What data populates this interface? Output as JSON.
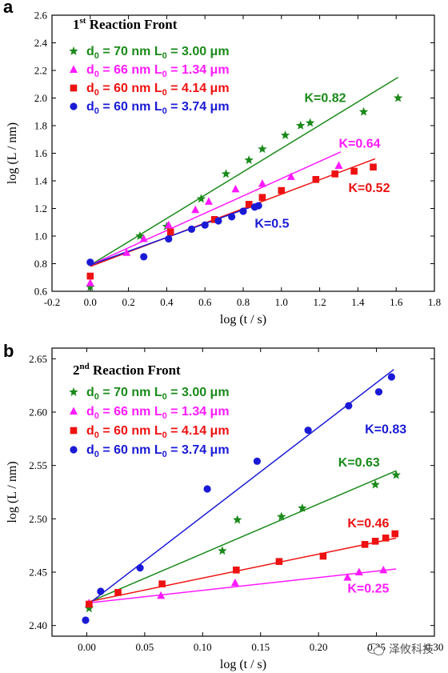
{
  "chart_data": [
    {
      "panel": "a",
      "type": "scatter",
      "title": "1st Reaction Front",
      "title_main": "1",
      "title_sup": "st",
      "title_rest": " Reaction Front",
      "xlabel": "log (t / s)",
      "ylabel": "log (L / nm)",
      "xlim": [
        -0.2,
        1.8
      ],
      "ylim": [
        0.6,
        2.6
      ],
      "xticks": [
        -0.2,
        0.0,
        0.2,
        0.4,
        0.6,
        0.8,
        1.0,
        1.2,
        1.4,
        1.6,
        1.8
      ],
      "yticks": [
        0.6,
        0.8,
        1.0,
        1.2,
        1.4,
        1.6,
        1.8,
        2.0,
        2.2,
        2.4,
        2.6
      ],
      "xtick_labels": [
        "-0.2",
        "0.0",
        "0.2",
        "0.4",
        "0.6",
        "0.8",
        "1.0",
        "1.2",
        "1.4",
        "1.6",
        "1.8"
      ],
      "ytick_labels": [
        "0.6",
        "0.8",
        "1.0",
        "1.2",
        "1.4",
        "1.6",
        "1.8",
        "2.0",
        "2.2",
        "2.4",
        "2.6"
      ],
      "legend_position": "top-left",
      "series": [
        {
          "name": "d0 = 70 nm  L0 = 3.00 μm",
          "legend_d": "d",
          "legend_sub1": "0",
          "legend_mid": " = 70 nm  L",
          "legend_sub2": "0",
          "legend_end": " = 3.00 μm",
          "marker": "star",
          "color": "#1a8a1a",
          "points": [
            [
              0.0,
              0.63
            ],
            [
              0.26,
              1.0
            ],
            [
              0.4,
              1.07
            ],
            [
              0.58,
              1.27
            ],
            [
              0.71,
              1.45
            ],
            [
              0.83,
              1.55
            ],
            [
              0.9,
              1.63
            ],
            [
              1.02,
              1.73
            ],
            [
              1.1,
              1.8
            ],
            [
              1.15,
              1.82
            ],
            [
              1.43,
              1.9
            ],
            [
              1.61,
              2.0
            ]
          ],
          "fit": {
            "x": [
              0.0,
              1.61
            ],
            "y": [
              0.79,
              2.15
            ]
          },
          "k_label": "K=0.82",
          "k_at": [
            1.12,
            1.97
          ]
        },
        {
          "name": "d0 = 66 nm  L0 = 1.34 μm",
          "legend_d": "d",
          "legend_sub1": "0",
          "legend_mid": " = 66 nm  L",
          "legend_sub2": "0",
          "legend_end": " = 1.34 μm",
          "marker": "triangle",
          "color": "#ff1aff",
          "points": [
            [
              0.0,
              0.66
            ],
            [
              0.19,
              0.88
            ],
            [
              0.28,
              0.98
            ],
            [
              0.41,
              1.08
            ],
            [
              0.55,
              1.19
            ],
            [
              0.62,
              1.25
            ],
            [
              0.76,
              1.34
            ],
            [
              0.9,
              1.38
            ],
            [
              1.05,
              1.43
            ],
            [
              1.3,
              1.51
            ]
          ],
          "fit": {
            "x": [
              0.0,
              1.31
            ],
            "y": [
              0.79,
              1.61
            ]
          },
          "k_label": "K=0.64",
          "k_at": [
            1.3,
            1.64
          ]
        },
        {
          "name": "d0 = 60 nm  L0 = 4.14 μm",
          "legend_d": "d",
          "legend_sub1": "0",
          "legend_mid": " = 60 nm  L",
          "legend_sub2": "0",
          "legend_end": " = 4.14 μm",
          "marker": "square",
          "color": "#ee1111",
          "points": [
            [
              0.0,
              0.71
            ],
            [
              0.42,
              1.03
            ],
            [
              0.65,
              1.12
            ],
            [
              0.83,
              1.23
            ],
            [
              0.9,
              1.28
            ],
            [
              1.0,
              1.33
            ],
            [
              1.18,
              1.41
            ],
            [
              1.28,
              1.45
            ],
            [
              1.38,
              1.47
            ],
            [
              1.48,
              1.5
            ]
          ],
          "fit": {
            "x": [
              0.0,
              1.49
            ],
            "y": [
              0.78,
              1.56
            ]
          },
          "k_label": "K=0.52",
          "k_at": [
            1.35,
            1.32
          ]
        },
        {
          "name": "d0 = 60 nm  L0 = 3.74 μm",
          "legend_d": "d",
          "legend_sub1": "0",
          "legend_mid": " = 60 nm  L",
          "legend_sub2": "0",
          "legend_end": " = 3.74 μm",
          "marker": "circle",
          "color": "#1a1ad6",
          "points": [
            [
              0.0,
              0.81
            ],
            [
              0.28,
              0.85
            ],
            [
              0.41,
              0.98
            ],
            [
              0.53,
              1.05
            ],
            [
              0.6,
              1.08
            ],
            [
              0.67,
              1.11
            ],
            [
              0.74,
              1.14
            ],
            [
              0.8,
              1.18
            ],
            [
              0.86,
              1.21
            ],
            [
              0.88,
              1.22
            ]
          ],
          "fit": {
            "x": [
              0.0,
              0.88
            ],
            "y": [
              0.79,
              1.23
            ]
          },
          "k_label": "K=0.5",
          "k_at": [
            0.86,
            1.06
          ]
        }
      ]
    },
    {
      "panel": "b",
      "type": "scatter",
      "title": "2nd Reaction Front",
      "title_main": "2",
      "title_sup": "nd",
      "title_rest": " Reaction Front",
      "xlabel": "log (t / s)",
      "ylabel": "log (L / nm)",
      "xlim": [
        -0.03,
        0.3
      ],
      "ylim": [
        2.39,
        2.66
      ],
      "xticks": [
        0.0,
        0.05,
        0.1,
        0.15,
        0.2,
        0.25,
        0.3
      ],
      "yticks": [
        2.4,
        2.45,
        2.5,
        2.55,
        2.6,
        2.65
      ],
      "xtick_labels": [
        "0.00",
        "0.05",
        "0.10",
        "0.15",
        "0.20",
        "0.25",
        "0.30"
      ],
      "ytick_labels": [
        "2.40",
        "2.45",
        "2.50",
        "2.55",
        "2.60",
        "2.65"
      ],
      "legend_position": "top-left",
      "series": [
        {
          "name": "d0 = 70 nm  L0 = 3.00 μm",
          "legend_d": "d",
          "legend_sub1": "0",
          "legend_mid": " = 70 nm  L",
          "legend_sub2": "0",
          "legend_end": " = 3.00 μm",
          "marker": "star",
          "color": "#1a8a1a",
          "points": [
            [
              0.002,
              2.416
            ],
            [
              0.117,
              2.47
            ],
            [
              0.13,
              2.499
            ],
            [
              0.168,
              2.502
            ],
            [
              0.186,
              2.51
            ],
            [
              0.249,
              2.532
            ],
            [
              0.267,
              2.541
            ]
          ],
          "fit": {
            "x": [
              0.0,
              0.267
            ],
            "y": [
              2.421,
              2.545
            ]
          },
          "k_label": "K=0.63",
          "k_at": [
            0.217,
            2.549
          ]
        },
        {
          "name": "d0 = 66 nm  L0 = 1.34 μm",
          "legend_d": "d",
          "legend_sub1": "0",
          "legend_mid": " = 66 nm  L",
          "legend_sub2": "0",
          "legend_end": " = 1.34 μm",
          "marker": "triangle",
          "color": "#ff1aff",
          "points": [
            [
              0.002,
              2.421
            ],
            [
              0.064,
              2.428
            ],
            [
              0.128,
              2.44
            ],
            [
              0.225,
              2.445
            ],
            [
              0.235,
              2.45
            ],
            [
              0.256,
              2.452
            ]
          ],
          "fit": {
            "x": [
              0.0,
              0.267
            ],
            "y": [
              2.421,
              2.453
            ]
          },
          "k_label": "K=0.25",
          "k_at": [
            0.225,
            2.431
          ]
        },
        {
          "name": "d0 = 60 nm  L0 = 4.14 μm",
          "legend_d": "d",
          "legend_sub1": "0",
          "legend_mid": " = 60 nm  L",
          "legend_sub2": "0",
          "legend_end": " = 4.14 μm",
          "marker": "square",
          "color": "#ee1111",
          "points": [
            [
              0.002,
              2.42
            ],
            [
              0.027,
              2.431
            ],
            [
              0.065,
              2.439
            ],
            [
              0.129,
              2.452
            ],
            [
              0.166,
              2.46
            ],
            [
              0.204,
              2.465
            ],
            [
              0.24,
              2.476
            ],
            [
              0.249,
              2.479
            ],
            [
              0.258,
              2.482
            ],
            [
              0.266,
              2.486
            ]
          ],
          "fit": {
            "x": [
              0.0,
              0.267
            ],
            "y": [
              2.422,
              2.482
            ]
          },
          "k_label": "K=0.46",
          "k_at": [
            0.225,
            2.492
          ]
        },
        {
          "name": "d0 = 60 nm  L0 = 3.74 μm",
          "legend_d": "d",
          "legend_sub1": "0",
          "legend_mid": " = 60 nm  L",
          "legend_sub2": "0",
          "legend_end": " = 3.74 μm",
          "marker": "circle",
          "color": "#1a1ad6",
          "points": [
            [
              -0.001,
              2.405
            ],
            [
              0.012,
              2.432
            ],
            [
              0.046,
              2.454
            ],
            [
              0.104,
              2.528
            ],
            [
              0.147,
              2.554
            ],
            [
              0.191,
              2.583
            ],
            [
              0.226,
              2.606
            ],
            [
              0.252,
              2.619
            ],
            [
              0.263,
              2.633
            ]
          ],
          "fit": {
            "x": [
              0.0,
              0.265
            ],
            "y": [
              2.419,
              2.64
            ]
          },
          "k_label": "K=0.83",
          "k_at": [
            0.24,
            2.58
          ]
        }
      ]
    }
  ],
  "watermark": {
    "text": "泽攸科技",
    "icon": "wechat-icon"
  }
}
